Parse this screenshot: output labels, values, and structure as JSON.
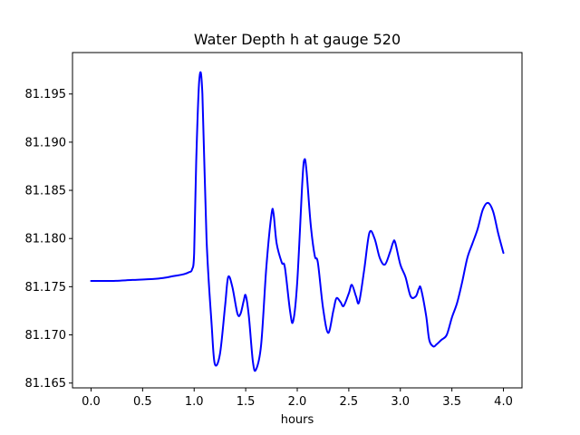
{
  "chart_data": {
    "type": "line",
    "title": "Water Depth h at gauge 520",
    "xlabel": "hours",
    "ylabel": "",
    "xlim": [
      -0.18,
      4.18
    ],
    "ylim": [
      81.1645,
      81.1993
    ],
    "xticks": [
      "0.0",
      "0.5",
      "1.0",
      "1.5",
      "2.0",
      "2.5",
      "3.0",
      "3.5",
      "4.0"
    ],
    "yticks": [
      "81.165",
      "81.170",
      "81.175",
      "81.180",
      "81.185",
      "81.190",
      "81.195"
    ],
    "grid": false,
    "series": [
      {
        "color": "#0000ff",
        "x": [
          0.0,
          0.2,
          0.4,
          0.6,
          0.7,
          0.8,
          0.9,
          0.95,
          0.98,
          1.0,
          1.02,
          1.05,
          1.08,
          1.12,
          1.17,
          1.2,
          1.25,
          1.3,
          1.33,
          1.37,
          1.42,
          1.45,
          1.48,
          1.5,
          1.53,
          1.57,
          1.6,
          1.65,
          1.7,
          1.75,
          1.77,
          1.8,
          1.85,
          1.88,
          1.93,
          1.96,
          2.0,
          2.05,
          2.07,
          2.09,
          2.13,
          2.17,
          2.2,
          2.25,
          2.3,
          2.35,
          2.38,
          2.42,
          2.45,
          2.5,
          2.53,
          2.57,
          2.6,
          2.65,
          2.7,
          2.75,
          2.8,
          2.85,
          2.9,
          2.93,
          2.95,
          3.0,
          3.05,
          3.1,
          3.15,
          3.18,
          3.2,
          3.25,
          3.28,
          3.32,
          3.35,
          3.4,
          3.45,
          3.5,
          3.55,
          3.6,
          3.65,
          3.7,
          3.75,
          3.8,
          3.85,
          3.9,
          3.95,
          4.0
        ],
        "y": [
          81.1756,
          81.1756,
          81.1757,
          81.1758,
          81.1759,
          81.1761,
          81.1763,
          81.1765,
          81.1768,
          81.1785,
          81.188,
          81.1965,
          81.195,
          81.18,
          81.171,
          81.167,
          81.168,
          81.173,
          81.176,
          81.175,
          81.1722,
          81.1722,
          81.1735,
          81.1741,
          81.172,
          81.1672,
          81.1664,
          81.169,
          81.177,
          81.1825,
          81.1826,
          81.1795,
          81.1775,
          81.177,
          81.1725,
          81.1714,
          81.1755,
          81.186,
          81.1882,
          81.187,
          81.1815,
          81.1782,
          81.1775,
          81.1728,
          81.1702,
          81.1725,
          81.1738,
          81.1734,
          81.173,
          81.1743,
          81.1752,
          81.174,
          81.1734,
          81.1768,
          81.1806,
          81.18,
          81.178,
          81.1773,
          81.1786,
          81.1796,
          81.1796,
          81.1773,
          81.176,
          81.174,
          81.174,
          81.1748,
          81.1748,
          81.172,
          81.1695,
          81.1688,
          81.169,
          81.1695,
          81.17,
          81.1718,
          81.1733,
          81.1755,
          81.178,
          81.1795,
          81.181,
          81.183,
          81.1837,
          81.1828,
          81.1805,
          81.1785
        ]
      }
    ]
  }
}
